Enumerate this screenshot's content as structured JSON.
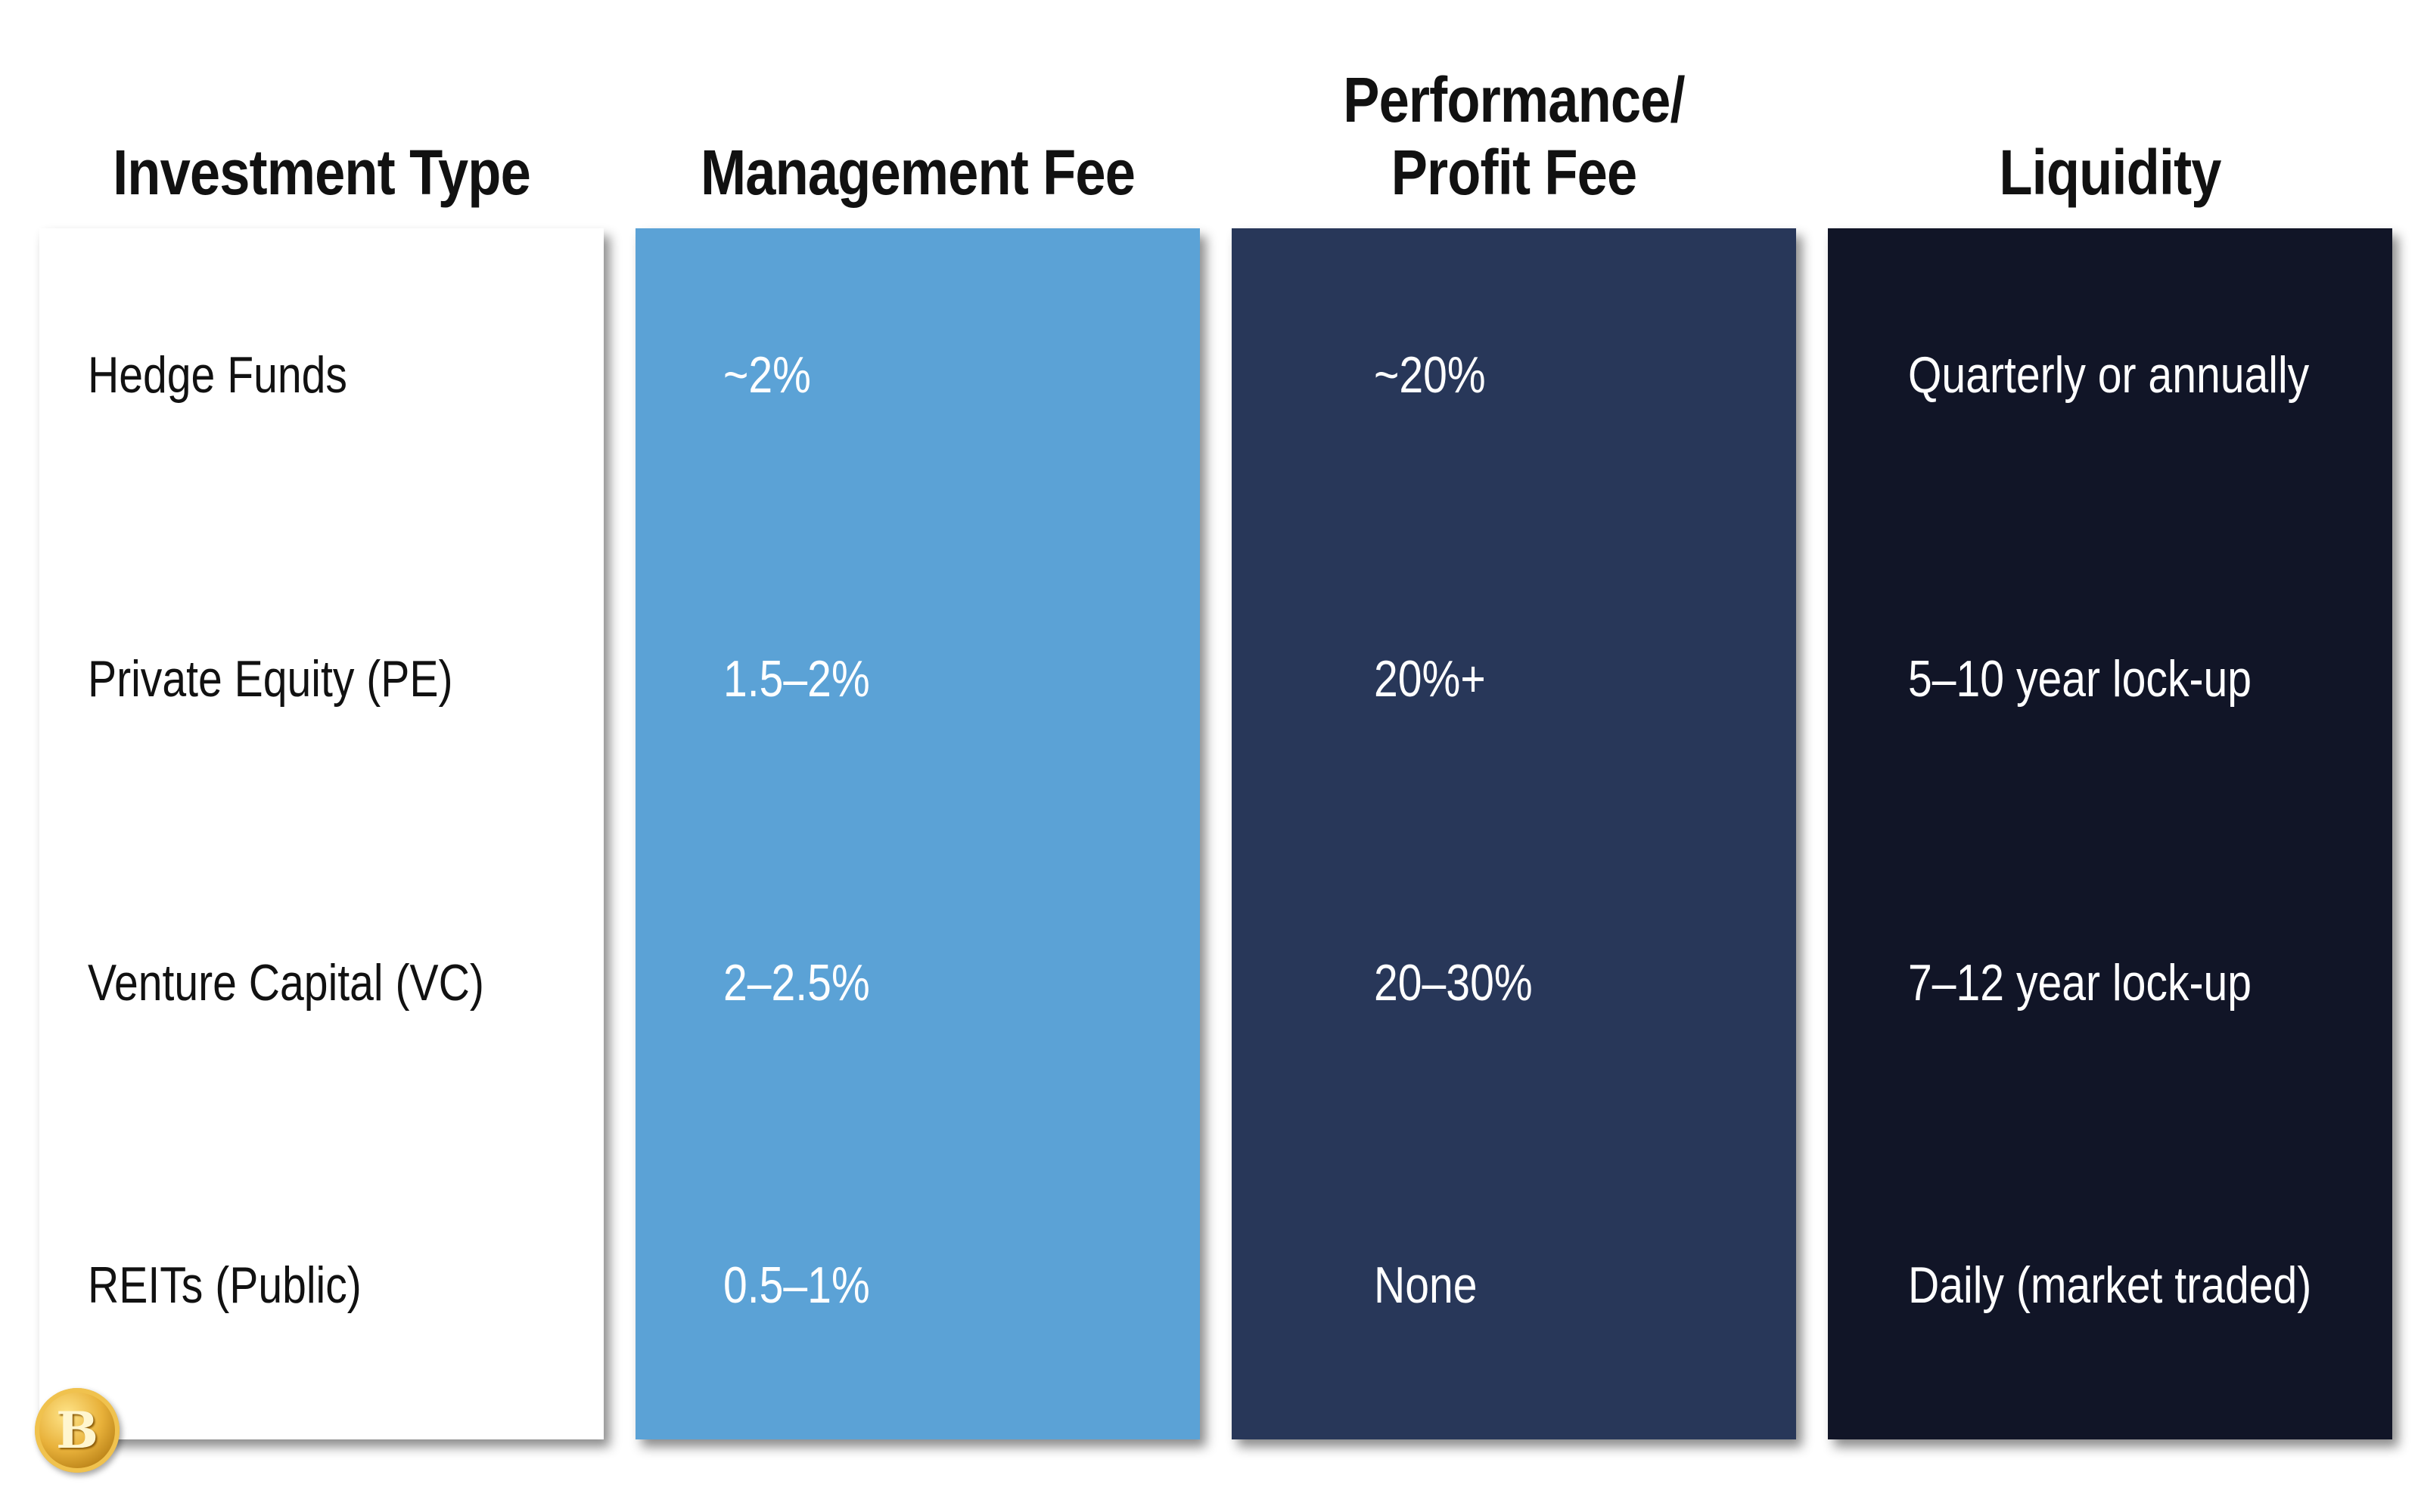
{
  "headers": {
    "type": "Investment Type",
    "management": "Management Fee",
    "performance": "Performance/\nProfit Fee",
    "liquidity": "Liquidity"
  },
  "rows": [
    {
      "type": "Hedge Funds",
      "management": "~2%",
      "performance": "~20%",
      "liquidity": "Quarterly or annually"
    },
    {
      "type": "Private Equity (PE)",
      "management": "1.5–2%",
      "performance": "20%+",
      "liquidity": "5–10 year lock-up"
    },
    {
      "type": "Venture Capital (VC)",
      "management": "2–2.5%",
      "performance": "20–30%",
      "liquidity": "7–12 year lock-up"
    },
    {
      "type": "REITs (Public)",
      "management": "0.5–1%",
      "performance": "None",
      "liquidity": "Daily (market traded)"
    }
  ],
  "logo": {
    "icon": "bitcoin-coin-icon",
    "glyph": "B"
  },
  "colors": {
    "management_col": "#5ba2d6",
    "performance_col": "#283759",
    "liquidity_col": "#111527"
  }
}
